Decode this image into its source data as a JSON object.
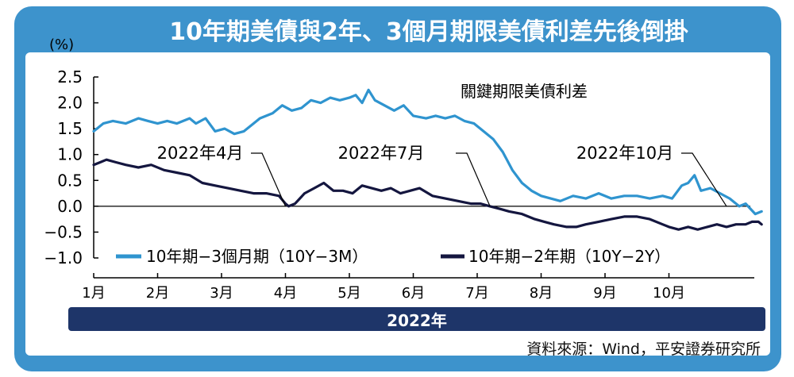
{
  "title": "10年期美債與2年、3個月期限美債利差先後倒掛",
  "source": "資料來源：Wind，平安證券研究所",
  "year_label": "2022年",
  "colors": {
    "frame_blue": "#3d93cc",
    "year_bar": "#1e3569",
    "series_10y3m": "#2f94cf",
    "series_10y2y": "#14163f",
    "axis": "#000000"
  },
  "chart_data": {
    "type": "line",
    "title": "關鍵期限美債利差",
    "ylabel": "(%)",
    "ylim": [
      -1.0,
      2.5
    ],
    "yticks": [
      "2.5",
      "2.0",
      "1.5",
      "1.0",
      "0.5",
      "0.0",
      "−0.5",
      "−1.0"
    ],
    "yticks_values": [
      2.5,
      2.0,
      1.5,
      1.0,
      0.5,
      0.0,
      -0.5,
      -1.0
    ],
    "xticks": [
      "1月",
      "2月",
      "3月",
      "4月",
      "5月",
      "6月",
      "7月",
      "8月",
      "9月",
      "10月"
    ],
    "xlim_month_start": 1,
    "annotations": [
      {
        "text": "2022年4月",
        "x": 4.0,
        "y": 0.0
      },
      {
        "text": "2022年7月",
        "x": 7.2,
        "y": 0.0
      },
      {
        "text": "2022年10月",
        "x": 10.9,
        "y": 0.0
      }
    ],
    "legend_position": "bottom-left",
    "series": [
      {
        "name": "10年期−3個月期（10Y−3M）",
        "x": [
          1.0,
          1.15,
          1.3,
          1.5,
          1.7,
          1.85,
          2.0,
          2.15,
          2.3,
          2.5,
          2.6,
          2.75,
          2.9,
          3.05,
          3.2,
          3.35,
          3.5,
          3.6,
          3.8,
          3.95,
          4.1,
          4.25,
          4.4,
          4.55,
          4.7,
          4.85,
          5.0,
          5.1,
          5.2,
          5.3,
          5.4,
          5.55,
          5.7,
          5.85,
          6.0,
          6.2,
          6.35,
          6.5,
          6.65,
          6.8,
          6.95,
          7.1,
          7.25,
          7.4,
          7.55,
          7.7,
          7.85,
          8.0,
          8.15,
          8.3,
          8.5,
          8.7,
          8.9,
          9.1,
          9.3,
          9.5,
          9.7,
          9.9,
          10.05,
          10.2,
          10.3,
          10.4,
          10.5,
          10.65,
          10.8,
          10.95,
          11.1,
          11.2,
          11.35,
          11.45
        ],
        "values": [
          1.45,
          1.6,
          1.65,
          1.6,
          1.7,
          1.65,
          1.6,
          1.65,
          1.6,
          1.7,
          1.6,
          1.7,
          1.45,
          1.5,
          1.4,
          1.45,
          1.6,
          1.7,
          1.8,
          1.95,
          1.85,
          1.9,
          2.05,
          2.0,
          2.1,
          2.05,
          2.1,
          2.15,
          2.0,
          2.25,
          2.05,
          1.95,
          1.85,
          1.95,
          1.75,
          1.7,
          1.75,
          1.7,
          1.75,
          1.65,
          1.6,
          1.45,
          1.3,
          1.05,
          0.7,
          0.45,
          0.3,
          0.2,
          0.15,
          0.1,
          0.2,
          0.15,
          0.25,
          0.15,
          0.2,
          0.2,
          0.15,
          0.2,
          0.15,
          0.4,
          0.45,
          0.6,
          0.3,
          0.35,
          0.25,
          0.15,
          0.0,
          0.05,
          -0.15,
          -0.1
        ]
      },
      {
        "name": "10年期−2年期（10Y−2Y）",
        "x": [
          1.0,
          1.1,
          1.2,
          1.35,
          1.5,
          1.7,
          1.9,
          2.1,
          2.3,
          2.5,
          2.7,
          2.9,
          3.1,
          3.3,
          3.5,
          3.7,
          3.9,
          4.0,
          4.05,
          4.15,
          4.3,
          4.45,
          4.6,
          4.75,
          4.9,
          5.05,
          5.2,
          5.35,
          5.5,
          5.65,
          5.8,
          5.95,
          6.1,
          6.3,
          6.5,
          6.7,
          6.9,
          7.05,
          7.2,
          7.35,
          7.5,
          7.7,
          7.9,
          8.05,
          8.2,
          8.4,
          8.55,
          8.7,
          8.9,
          9.1,
          9.3,
          9.5,
          9.7,
          9.9,
          10.0,
          10.15,
          10.3,
          10.45,
          10.6,
          10.75,
          10.9,
          11.05,
          11.2,
          11.3,
          11.4,
          11.45
        ],
        "values": [
          0.8,
          0.85,
          0.9,
          0.85,
          0.8,
          0.75,
          0.8,
          0.7,
          0.65,
          0.6,
          0.45,
          0.4,
          0.35,
          0.3,
          0.25,
          0.25,
          0.2,
          0.05,
          0.0,
          0.05,
          0.25,
          0.35,
          0.45,
          0.3,
          0.3,
          0.25,
          0.4,
          0.35,
          0.3,
          0.35,
          0.25,
          0.3,
          0.35,
          0.2,
          0.15,
          0.1,
          0.05,
          0.05,
          0.0,
          -0.05,
          -0.1,
          -0.15,
          -0.25,
          -0.3,
          -0.35,
          -0.4,
          -0.4,
          -0.35,
          -0.3,
          -0.25,
          -0.2,
          -0.2,
          -0.25,
          -0.35,
          -0.4,
          -0.45,
          -0.4,
          -0.45,
          -0.4,
          -0.35,
          -0.4,
          -0.35,
          -0.35,
          -0.3,
          -0.3,
          -0.35
        ]
      }
    ]
  }
}
